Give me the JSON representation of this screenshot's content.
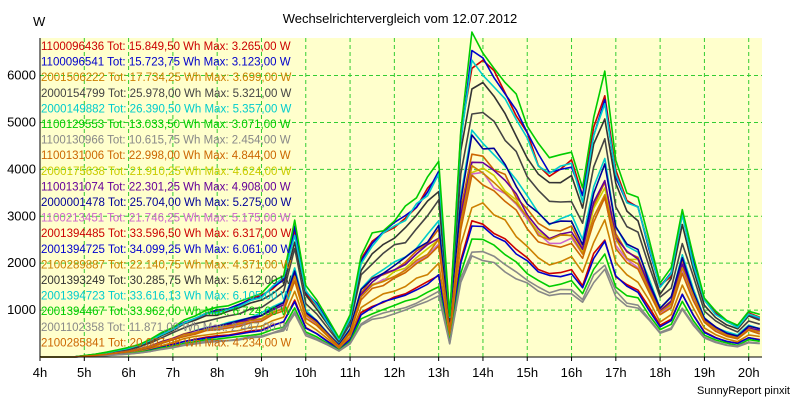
{
  "chart_data": {
    "type": "line",
    "title": "Wechselrichtervergleich vom 12.07.2012",
    "ylabel": "W",
    "footer": "SunnyReport pinxit",
    "ylim": [
      0,
      6800
    ],
    "yticks": [
      1000,
      2000,
      3000,
      4000,
      5000,
      6000
    ],
    "x_hours": [
      4,
      20.3
    ],
    "categories": [
      "4h",
      "5h",
      "6h",
      "7h",
      "8h",
      "9h",
      "10h",
      "11h",
      "12h",
      "13h",
      "14h",
      "15h",
      "16h",
      "17h",
      "18h",
      "19h",
      "20h"
    ],
    "x_step_hours": 0.25,
    "grid": true,
    "legend_position": "top-left",
    "background_color": "#ffffcc",
    "grid_color": "#33cc33",
    "series": [
      {
        "name": "1100096436 Tot: 15.849,50 Wh Max: 3.265,00 W",
        "color": "#cc0000",
        "base": 0,
        "scale": 0.42,
        "shift": 0.04,
        "noise": 0
      },
      {
        "name": "1100096541 Tot: 15.723,75 Wh Max: 3.123,00 W",
        "color": "#0000cc",
        "base": 0,
        "scale": 0.41,
        "shift": 0.02,
        "noise": 1
      },
      {
        "name": "2001506222 Tot: 17.734,25 Wh Max: 3.699,00 W",
        "color": "#cc8000",
        "base": 0,
        "scale": 0.48,
        "shift": 0.05,
        "noise": 2
      },
      {
        "name": "2000154799 Tot: 25.978,00 Wh Max: 5.321,00 W",
        "color": "#444444",
        "base": 0,
        "scale": 0.78,
        "shift": 0.01,
        "noise": 3
      },
      {
        "name": "2000149882 Tot: 26.390,50 Wh Max: 5.357,00 W",
        "color": "#00cccc",
        "base": 1,
        "scale": 0.72,
        "shift": 0.02,
        "noise": 4
      },
      {
        "name": "1100129553 Tot: 13.033,50 Wh Max: 3.071,00 W",
        "color": "#00cc00",
        "base": 0,
        "scale": 0.36,
        "shift": 0.08,
        "noise": 5
      },
      {
        "name": "1100130966 Tot: 10.615,75 Wh Max: 2.454,00 W",
        "color": "#888888",
        "base": 0,
        "scale": 0.3,
        "shift": 0.1,
        "noise": 6
      },
      {
        "name": "1100131006 Tot: 22.998,00 Wh Max: 4.844,00 W",
        "color": "#cc6600",
        "base": 0,
        "scale": 0.63,
        "shift": 0.0,
        "noise": 7
      },
      {
        "name": "2000175638 Tot: 21.910,25 Wh Max: 4.624,00 W",
        "color": "#cccc00",
        "base": 0,
        "scale": 0.6,
        "shift": 0.03,
        "noise": 8
      },
      {
        "name": "1100131074 Tot: 22.301,25 Wh Max: 4.908,00 W",
        "color": "#660099",
        "base": 0,
        "scale": 0.62,
        "shift": 0.01,
        "noise": 9
      },
      {
        "name": "2000001478 Tot: 25.704,00 Wh Max: 5.275,00 W",
        "color": "#000099",
        "base": 1,
        "scale": 0.71,
        "shift": 0.04,
        "noise": 10
      },
      {
        "name": "1100213451 Tot: 21.746,25 Wh Max: 5.175,00 W",
        "color": "#cc66cc",
        "base": 0,
        "scale": 0.58,
        "shift": 0.02,
        "noise": 11
      },
      {
        "name": "2001394485 Tot: 33.596,50 Wh Max: 6.317,00 W",
        "color": "#cc0000",
        "base": 0,
        "scale": 0.93,
        "shift": 0.0,
        "noise": 12
      },
      {
        "name": "2001394725 Tot: 34.099,25 Wh Max: 6.061,00 W",
        "color": "#0000cc",
        "base": 0,
        "scale": 0.94,
        "shift": 0.01,
        "noise": 13
      },
      {
        "name": "2100289887 Tot: 22.140,75 Wh Max: 4.371,00 W",
        "color": "#cc8000",
        "base": 0,
        "scale": 0.6,
        "shift": 0.06,
        "noise": 14
      },
      {
        "name": "2001393249 Tot: 30.285,75 Wh Max: 5.612,00 W",
        "color": "#333333",
        "base": 0,
        "scale": 0.86,
        "shift": 0.0,
        "noise": 15
      },
      {
        "name": "2001394723 Tot: 33.616,13 Wh Max: 6.105,00 W",
        "color": "#00cccc",
        "base": 0,
        "scale": 0.93,
        "shift": 0.02,
        "noise": 16
      },
      {
        "name": "2001394467 Tot: 33.962,00 Wh Max: 6.724,00 W",
        "color": "#00cc00",
        "base": 0,
        "scale": 0.99,
        "shift": 0.0,
        "noise": 17
      },
      {
        "name": "2001102358 Tot: 11.871,00 Wh Max: 2.447,00 W",
        "color": "#888888",
        "base": 0,
        "scale": 0.32,
        "shift": 0.09,
        "noise": 18
      },
      {
        "name": "2100285841 Tot: 20.007,96 Wh Max: 4.234,00 W",
        "color": "#cc6600",
        "base": 0,
        "scale": 0.56,
        "shift": 0.03,
        "noise": 19
      }
    ],
    "profiles": [
      [
        0,
        0,
        0,
        0,
        30,
        60,
        100,
        150,
        200,
        280,
        380,
        520,
        650,
        800,
        900,
        1000,
        1050,
        1100,
        1200,
        1300,
        1400,
        1600,
        1800,
        2900,
        1500,
        1200,
        800,
        400,
        900,
        2200,
        2600,
        2800,
        3000,
        3200,
        3500,
        3800,
        4200,
        900,
        5000,
        6800,
        6700,
        6400,
        6000,
        5500,
        5000,
        4500,
        4200,
        4300,
        4400,
        3700,
        5200,
        6000,
        4200,
        3600,
        3400,
        2500,
        1600,
        1900,
        3200,
        2200,
        1300,
        1000,
        800,
        700,
        1000,
        900,
        1200,
        1100,
        1300,
        1500,
        1200,
        1400,
        1200,
        1100,
        1000,
        1600,
        1500,
        1300,
        1600,
        2100,
        5100,
        5600,
        5700,
        4900,
        4700,
        3200,
        3000,
        2700,
        1800,
        2700,
        1300,
        1700,
        3800,
        3600,
        3500,
        3100,
        2600,
        1800,
        1200,
        1600,
        1700,
        600,
        400,
        300,
        200,
        100,
        50,
        20,
        10,
        0,
        0,
        0,
        0,
        0,
        0,
        0,
        0
      ],
      [
        0,
        0,
        0,
        0,
        20,
        50,
        80,
        120,
        160,
        220,
        300,
        420,
        540,
        680,
        780,
        880,
        940,
        1000,
        1100,
        1200,
        1300,
        1500,
        1700,
        2700,
        1400,
        1100,
        700,
        380,
        850,
        2000,
        2400,
        2600,
        2800,
        3000,
        3300,
        3600,
        4000,
        850,
        4800,
        6600,
        6500,
        6200,
        5800,
        5300,
        4800,
        4300,
        4000,
        4100,
        4200,
        3500,
        5000,
        5800,
        4000,
        3400,
        3200,
        2300,
        1500,
        1800,
        3000,
        2000,
        1200,
        900,
        750,
        650,
        950,
        850,
        1100,
        1000,
        1200,
        1400,
        1100,
        1300,
        1100,
        1000,
        950,
        1500,
        1400,
        1200,
        1500,
        2000,
        4900,
        5400,
        5500,
        4700,
        4500,
        3000,
        2800,
        2500,
        1700,
        2500,
        1200,
        1600,
        3600,
        3400,
        3300,
        2900,
        2400,
        1700,
        1100,
        1500,
        1600,
        550,
        380,
        280,
        180,
        90,
        45,
        18,
        8,
        0,
        0,
        0,
        0,
        0,
        0,
        0,
        0
      ]
    ]
  }
}
